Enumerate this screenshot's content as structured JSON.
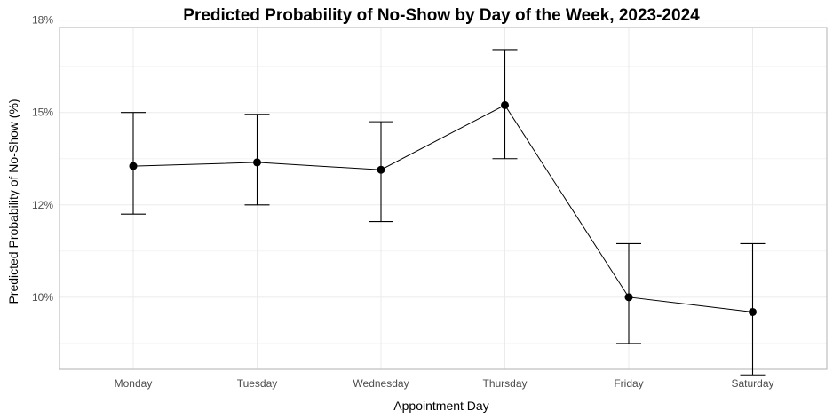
{
  "chart_data": {
    "type": "line",
    "title": "Predicted Probability of No-Show by Day of the Week, 2023-2024",
    "xlabel": "Appointment Day",
    "ylabel": "Predicted Probability of No-Show (%)",
    "categories": [
      "Monday",
      "Tuesday",
      "Wednesday",
      "Thursday",
      "Friday",
      "Saturday"
    ],
    "values": [
      0.1355,
      0.1365,
      0.1345,
      0.152,
      0.1,
      0.096
    ],
    "ci_lower": [
      0.1225,
      0.125,
      0.1205,
      0.1375,
      0.0875,
      0.079
    ],
    "ci_upper": [
      0.15,
      0.1495,
      0.1475,
      0.167,
      0.1145,
      0.1145
    ],
    "ylim": [
      0.0805,
      0.173
    ],
    "yticks": [
      0.1,
      0.125,
      0.15,
      0.175
    ],
    "ytick_labels": [
      "10%",
      "12%",
      "15%",
      "18%"
    ],
    "grid": true,
    "colors": {
      "line": "#000000",
      "point": "#000000",
      "errorbar": "#000000",
      "grid": "#ebebeb"
    }
  }
}
